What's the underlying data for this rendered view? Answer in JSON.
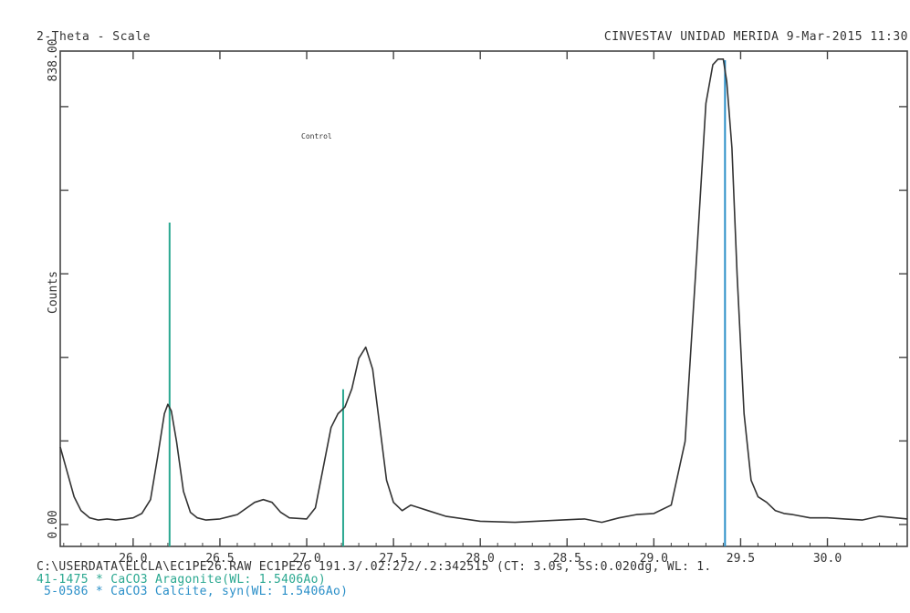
{
  "header": {
    "left": "2-Theta - Scale",
    "right": "CINVESTAV UNIDAD MERIDA  9-Mar-2015 11:30"
  },
  "annotation": "Control",
  "footer": {
    "line1": "C:\\USERDATA\\ELCLA\\EC1PE26.RAW EC1PE26 191.3/.02:2/2/.2:342515 (CT:  3.0s, SS:0.020dg, WL: 1.",
    "line2": "41-1475 * CaCO3 Aragonite(WL: 1.5406Ao)",
    "line3": "5-0586 * CaCO3 Calcite, syn(WL: 1.5406Ao)"
  },
  "chart_data": {
    "type": "line",
    "title": "",
    "xlabel": "",
    "ylabel": "Counts",
    "xlim": [
      25.58,
      30.46
    ],
    "ylim": [
      0,
      838.0
    ],
    "x_ticks": [
      "26.0",
      "26.5",
      "27.0",
      "27.5",
      "28.0",
      "28.5",
      "29.0",
      "29.5",
      "30.0"
    ],
    "y_tick_labels": [
      "0.00",
      "838.00"
    ],
    "grid": false,
    "series": [
      {
        "x": [
          25.58,
          25.62,
          25.66,
          25.7,
          25.75,
          25.8,
          25.85,
          25.9,
          25.95,
          26.0,
          26.05,
          26.1,
          26.14,
          26.18,
          26.2,
          26.22,
          26.25,
          26.29,
          26.33,
          26.37,
          26.42,
          26.5,
          26.6,
          26.7,
          26.75,
          26.8,
          26.85,
          26.9,
          27.0,
          27.05,
          27.1,
          27.14,
          27.18,
          27.22,
          27.26,
          27.3,
          27.34,
          27.38,
          27.42,
          27.46,
          27.5,
          27.55,
          27.6,
          27.65,
          27.7,
          27.8,
          28.0,
          28.2,
          28.4,
          28.6,
          28.7,
          28.8,
          28.9,
          29.0,
          29.1,
          29.18,
          29.24,
          29.3,
          29.34,
          29.37,
          29.4,
          29.42,
          29.45,
          29.48,
          29.52,
          29.56,
          29.6,
          29.65,
          29.7,
          29.75,
          29.8,
          29.9,
          30.0,
          30.1,
          30.2,
          30.3,
          30.46
        ],
        "y": [
          140,
          95,
          50,
          25,
          12,
          8,
          10,
          8,
          10,
          12,
          20,
          45,
          120,
          200,
          217,
          205,
          150,
          60,
          22,
          12,
          8,
          10,
          18,
          40,
          45,
          40,
          22,
          12,
          10,
          30,
          110,
          175,
          200,
          212,
          245,
          300,
          320,
          280,
          180,
          80,
          40,
          25,
          35,
          30,
          25,
          15,
          6,
          4,
          7,
          10,
          4,
          12,
          18,
          20,
          35,
          150,
          450,
          760,
          830,
          840,
          840,
          800,
          680,
          450,
          200,
          80,
          50,
          40,
          25,
          20,
          18,
          12,
          12,
          10,
          8,
          15,
          10
        ]
      }
    ],
    "reference_lines": [
      {
        "name": "41-1475 * CaCO3 Aragonite(WL: 1.5406Ao)",
        "color": "#2aa890",
        "sticks": [
          [
            26.21,
            545
          ],
          [
            27.21,
            244
          ]
        ]
      },
      {
        "name": "5-0586 * CaCO3 Calcite, syn(WL: 1.5406Ao)",
        "color": "#2a8fc8",
        "sticks": [
          [
            29.41,
            838
          ]
        ]
      }
    ]
  }
}
